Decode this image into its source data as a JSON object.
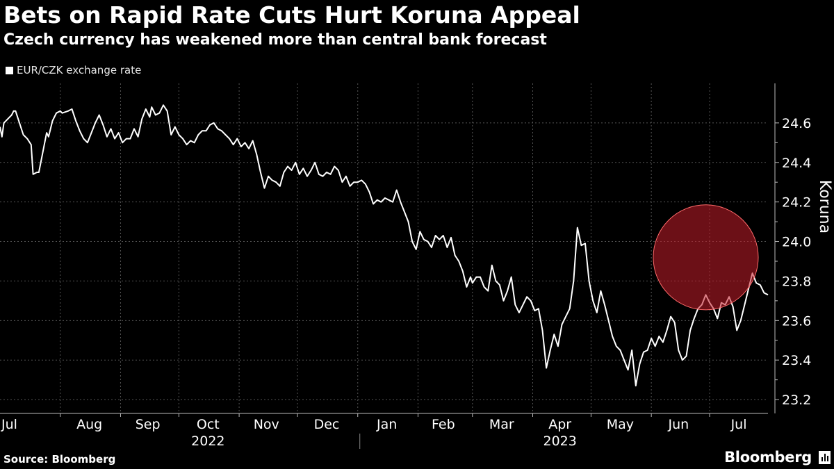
{
  "title": "Bets on Rapid Rate Cuts Hurt Koruna Appeal",
  "subtitle": "Czech currency has weakened more than central bank forecast",
  "legend_label": "EUR/CZK exchange rate",
  "source": "Source: Bloomberg",
  "brand": "Bloomberg",
  "colors": {
    "background": "#000000",
    "line": "#ffffff",
    "highlight": "#c41e2a",
    "grid": "#555555"
  },
  "chart_data": {
    "type": "line",
    "title": "Bets on Rapid Rate Cuts Hurt Koruna Appeal",
    "subtitle": "Czech currency has weakened more than central bank forecast",
    "xlabel": "",
    "ylabel": "Koruna",
    "ylim": [
      23.13,
      24.8
    ],
    "y_ticks": [
      23.2,
      23.4,
      23.6,
      23.8,
      24.0,
      24.2,
      24.4,
      24.6
    ],
    "y_tick_labels": [
      "23.2",
      "23.4",
      "23.6",
      "23.8",
      "24.0",
      "24.2",
      "24.4",
      "24.6"
    ],
    "x_range": [
      "2022-07-01",
      "2023-07-31"
    ],
    "x_ticks": [
      {
        "label": "Jul",
        "date": "2022-07-16"
      },
      {
        "label": "Aug",
        "date": "2022-08-16"
      },
      {
        "label": "Sep",
        "date": "2022-09-15"
      },
      {
        "label": "Oct",
        "date": "2022-10-16"
      },
      {
        "label": "Nov",
        "date": "2022-11-15"
      },
      {
        "label": "Dec",
        "date": "2022-12-16"
      },
      {
        "label": "Jan",
        "date": "2023-01-16"
      },
      {
        "label": "Feb",
        "date": "2023-02-14"
      },
      {
        "label": "Mar",
        "date": "2023-03-16"
      },
      {
        "label": "Apr",
        "date": "2023-04-15"
      },
      {
        "label": "May",
        "date": "2023-05-16"
      },
      {
        "label": "Jun",
        "date": "2023-06-15"
      },
      {
        "label": "Jul",
        "date": "2023-07-16"
      }
    ],
    "x_grid_dates": [
      "2022-08-01",
      "2022-09-01",
      "2022-10-01",
      "2022-11-01",
      "2022-12-01",
      "2023-01-01",
      "2023-02-01",
      "2023-03-01",
      "2023-04-01",
      "2023-05-01",
      "2023-06-01",
      "2023-07-01",
      "2023-08-01"
    ],
    "year_labels": [
      {
        "label": "2022",
        "date": "2022-10-16"
      },
      {
        "label": "2023",
        "date": "2023-04-15"
      }
    ],
    "year_divider_date": "2023-01-01",
    "grid": true,
    "legend_position": "top-left",
    "highlight": {
      "center_date": "2023-06-29",
      "center_value": 23.92,
      "radius_days": 27,
      "color": "#c41e2a"
    },
    "series": [
      {
        "name": "EUR/CZK exchange rate",
        "points": [
          [
            "2022-07-01",
            24.58
          ],
          [
            "2022-07-02",
            24.53
          ],
          [
            "2022-07-03",
            24.6
          ],
          [
            "2022-07-05",
            24.62
          ],
          [
            "2022-07-07",
            24.64
          ],
          [
            "2022-07-08",
            24.66
          ],
          [
            "2022-07-09",
            24.66
          ],
          [
            "2022-07-11",
            24.6
          ],
          [
            "2022-07-13",
            24.54
          ],
          [
            "2022-07-15",
            24.52
          ],
          [
            "2022-07-17",
            24.49
          ],
          [
            "2022-07-18",
            24.34
          ],
          [
            "2022-07-20",
            24.35
          ],
          [
            "2022-07-21",
            24.35
          ],
          [
            "2022-07-23",
            24.45
          ],
          [
            "2022-07-25",
            24.55
          ],
          [
            "2022-07-26",
            24.53
          ],
          [
            "2022-07-28",
            24.61
          ],
          [
            "2022-07-30",
            24.65
          ],
          [
            "2022-08-01",
            24.66
          ],
          [
            "2022-08-02",
            24.65
          ],
          [
            "2022-08-05",
            24.66
          ],
          [
            "2022-08-07",
            24.67
          ],
          [
            "2022-08-09",
            24.61
          ],
          [
            "2022-08-11",
            24.56
          ],
          [
            "2022-08-13",
            24.52
          ],
          [
            "2022-08-15",
            24.5
          ],
          [
            "2022-08-17",
            24.55
          ],
          [
            "2022-08-19",
            24.6
          ],
          [
            "2022-08-21",
            24.64
          ],
          [
            "2022-08-23",
            24.59
          ],
          [
            "2022-08-25",
            24.53
          ],
          [
            "2022-08-27",
            24.57
          ],
          [
            "2022-08-29",
            24.52
          ],
          [
            "2022-08-31",
            24.55
          ],
          [
            "2022-09-02",
            24.5
          ],
          [
            "2022-09-04",
            24.52
          ],
          [
            "2022-09-06",
            24.52
          ],
          [
            "2022-09-08",
            24.57
          ],
          [
            "2022-09-10",
            24.53
          ],
          [
            "2022-09-12",
            24.62
          ],
          [
            "2022-09-14",
            24.67
          ],
          [
            "2022-09-16",
            24.63
          ],
          [
            "2022-09-17",
            24.68
          ],
          [
            "2022-09-19",
            24.64
          ],
          [
            "2022-09-21",
            24.65
          ],
          [
            "2022-09-23",
            24.69
          ],
          [
            "2022-09-25",
            24.66
          ],
          [
            "2022-09-27",
            24.54
          ],
          [
            "2022-09-29",
            24.58
          ],
          [
            "2022-10-01",
            24.54
          ],
          [
            "2022-10-03",
            24.52
          ],
          [
            "2022-10-05",
            24.49
          ],
          [
            "2022-10-07",
            24.51
          ],
          [
            "2022-10-09",
            24.5
          ],
          [
            "2022-10-11",
            24.54
          ],
          [
            "2022-10-13",
            24.56
          ],
          [
            "2022-10-15",
            24.56
          ],
          [
            "2022-10-17",
            24.59
          ],
          [
            "2022-10-19",
            24.6
          ],
          [
            "2022-10-21",
            24.57
          ],
          [
            "2022-10-23",
            24.56
          ],
          [
            "2022-10-25",
            24.54
          ],
          [
            "2022-10-27",
            24.52
          ],
          [
            "2022-10-29",
            24.49
          ],
          [
            "2022-10-31",
            24.52
          ],
          [
            "2022-11-02",
            24.48
          ],
          [
            "2022-11-04",
            24.5
          ],
          [
            "2022-11-06",
            24.47
          ],
          [
            "2022-11-08",
            24.51
          ],
          [
            "2022-11-10",
            24.44
          ],
          [
            "2022-11-12",
            24.35
          ],
          [
            "2022-11-14",
            24.27
          ],
          [
            "2022-11-16",
            24.33
          ],
          [
            "2022-11-18",
            24.31
          ],
          [
            "2022-11-20",
            24.3
          ],
          [
            "2022-11-22",
            24.28
          ],
          [
            "2022-11-24",
            24.35
          ],
          [
            "2022-11-26",
            24.38
          ],
          [
            "2022-11-28",
            24.36
          ],
          [
            "2022-11-30",
            24.4
          ],
          [
            "2022-12-02",
            24.34
          ],
          [
            "2022-12-04",
            24.37
          ],
          [
            "2022-12-06",
            24.33
          ],
          [
            "2022-12-08",
            24.36
          ],
          [
            "2022-12-10",
            24.4
          ],
          [
            "2022-12-12",
            24.34
          ],
          [
            "2022-12-14",
            24.33
          ],
          [
            "2022-12-16",
            24.35
          ],
          [
            "2022-12-18",
            24.34
          ],
          [
            "2022-12-20",
            24.38
          ],
          [
            "2022-12-22",
            24.36
          ],
          [
            "2022-12-24",
            24.3
          ],
          [
            "2022-12-26",
            24.33
          ],
          [
            "2022-12-28",
            24.28
          ],
          [
            "2022-12-30",
            24.3
          ],
          [
            "2023-01-01",
            24.3
          ],
          [
            "2023-01-03",
            24.31
          ],
          [
            "2023-01-05",
            24.29
          ],
          [
            "2023-01-07",
            24.25
          ],
          [
            "2023-01-09",
            24.19
          ],
          [
            "2023-01-11",
            24.21
          ],
          [
            "2023-01-13",
            24.2
          ],
          [
            "2023-01-15",
            24.22
          ],
          [
            "2023-01-17",
            24.21
          ],
          [
            "2023-01-19",
            24.2
          ],
          [
            "2023-01-21",
            24.26
          ],
          [
            "2023-01-23",
            24.2
          ],
          [
            "2023-01-25",
            24.15
          ],
          [
            "2023-01-27",
            24.1
          ],
          [
            "2023-01-29",
            24.0
          ],
          [
            "2023-01-31",
            23.96
          ],
          [
            "2023-02-02",
            24.05
          ],
          [
            "2023-02-04",
            24.01
          ],
          [
            "2023-02-06",
            24.0
          ],
          [
            "2023-02-08",
            23.97
          ],
          [
            "2023-02-10",
            24.03
          ],
          [
            "2023-02-12",
            24.01
          ],
          [
            "2023-02-14",
            24.03
          ],
          [
            "2023-02-16",
            23.97
          ],
          [
            "2023-02-18",
            24.02
          ],
          [
            "2023-02-20",
            23.93
          ],
          [
            "2023-02-22",
            23.9
          ],
          [
            "2023-02-24",
            23.85
          ],
          [
            "2023-02-26",
            23.77
          ],
          [
            "2023-02-28",
            23.82
          ],
          [
            "2023-03-01",
            23.79
          ],
          [
            "2023-03-03",
            23.82
          ],
          [
            "2023-03-05",
            23.82
          ],
          [
            "2023-03-07",
            23.77
          ],
          [
            "2023-03-09",
            23.75
          ],
          [
            "2023-03-11",
            23.88
          ],
          [
            "2023-03-13",
            23.8
          ],
          [
            "2023-03-15",
            23.78
          ],
          [
            "2023-03-17",
            23.7
          ],
          [
            "2023-03-19",
            23.75
          ],
          [
            "2023-03-21",
            23.82
          ],
          [
            "2023-03-23",
            23.68
          ],
          [
            "2023-03-25",
            23.64
          ],
          [
            "2023-03-27",
            23.68
          ],
          [
            "2023-03-29",
            23.72
          ],
          [
            "2023-03-31",
            23.7
          ],
          [
            "2023-04-02",
            23.65
          ],
          [
            "2023-04-04",
            23.66
          ],
          [
            "2023-04-06",
            23.55
          ],
          [
            "2023-04-08",
            23.36
          ],
          [
            "2023-04-10",
            23.45
          ],
          [
            "2023-04-12",
            23.53
          ],
          [
            "2023-04-14",
            23.47
          ],
          [
            "2023-04-16",
            23.58
          ],
          [
            "2023-04-18",
            23.62
          ],
          [
            "2023-04-20",
            23.66
          ],
          [
            "2023-04-22",
            23.8
          ],
          [
            "2023-04-24",
            24.07
          ],
          [
            "2023-04-26",
            23.98
          ],
          [
            "2023-04-28",
            23.99
          ],
          [
            "2023-04-30",
            23.8
          ],
          [
            "2023-05-02",
            23.7
          ],
          [
            "2023-05-04",
            23.64
          ],
          [
            "2023-05-06",
            23.75
          ],
          [
            "2023-05-08",
            23.68
          ],
          [
            "2023-05-10",
            23.6
          ],
          [
            "2023-05-12",
            23.52
          ],
          [
            "2023-05-14",
            23.47
          ],
          [
            "2023-05-16",
            23.45
          ],
          [
            "2023-05-18",
            23.4
          ],
          [
            "2023-05-20",
            23.35
          ],
          [
            "2023-05-22",
            23.45
          ],
          [
            "2023-05-24",
            23.27
          ],
          [
            "2023-05-26",
            23.38
          ],
          [
            "2023-05-28",
            23.44
          ],
          [
            "2023-05-30",
            23.45
          ],
          [
            "2023-06-01",
            23.51
          ],
          [
            "2023-06-03",
            23.47
          ],
          [
            "2023-06-05",
            23.52
          ],
          [
            "2023-06-07",
            23.49
          ],
          [
            "2023-06-09",
            23.55
          ],
          [
            "2023-06-11",
            23.62
          ],
          [
            "2023-06-13",
            23.59
          ],
          [
            "2023-06-15",
            23.45
          ],
          [
            "2023-06-17",
            23.4
          ],
          [
            "2023-06-19",
            23.42
          ],
          [
            "2023-06-21",
            23.55
          ],
          [
            "2023-06-23",
            23.61
          ],
          [
            "2023-06-25",
            23.66
          ],
          [
            "2023-06-27",
            23.68
          ],
          [
            "2023-06-29",
            23.73
          ],
          [
            "2023-07-01",
            23.69
          ],
          [
            "2023-07-03",
            23.66
          ],
          [
            "2023-07-05",
            23.61
          ],
          [
            "2023-07-07",
            23.69
          ],
          [
            "2023-07-09",
            23.68
          ],
          [
            "2023-07-11",
            23.72
          ],
          [
            "2023-07-13",
            23.67
          ],
          [
            "2023-07-15",
            23.55
          ],
          [
            "2023-07-17",
            23.6
          ],
          [
            "2023-07-19",
            23.68
          ],
          [
            "2023-07-21",
            23.76
          ],
          [
            "2023-07-23",
            23.84
          ],
          [
            "2023-07-25",
            23.79
          ],
          [
            "2023-07-27",
            23.78
          ],
          [
            "2023-07-29",
            23.74
          ],
          [
            "2023-07-31",
            23.73
          ]
        ]
      }
    ]
  }
}
